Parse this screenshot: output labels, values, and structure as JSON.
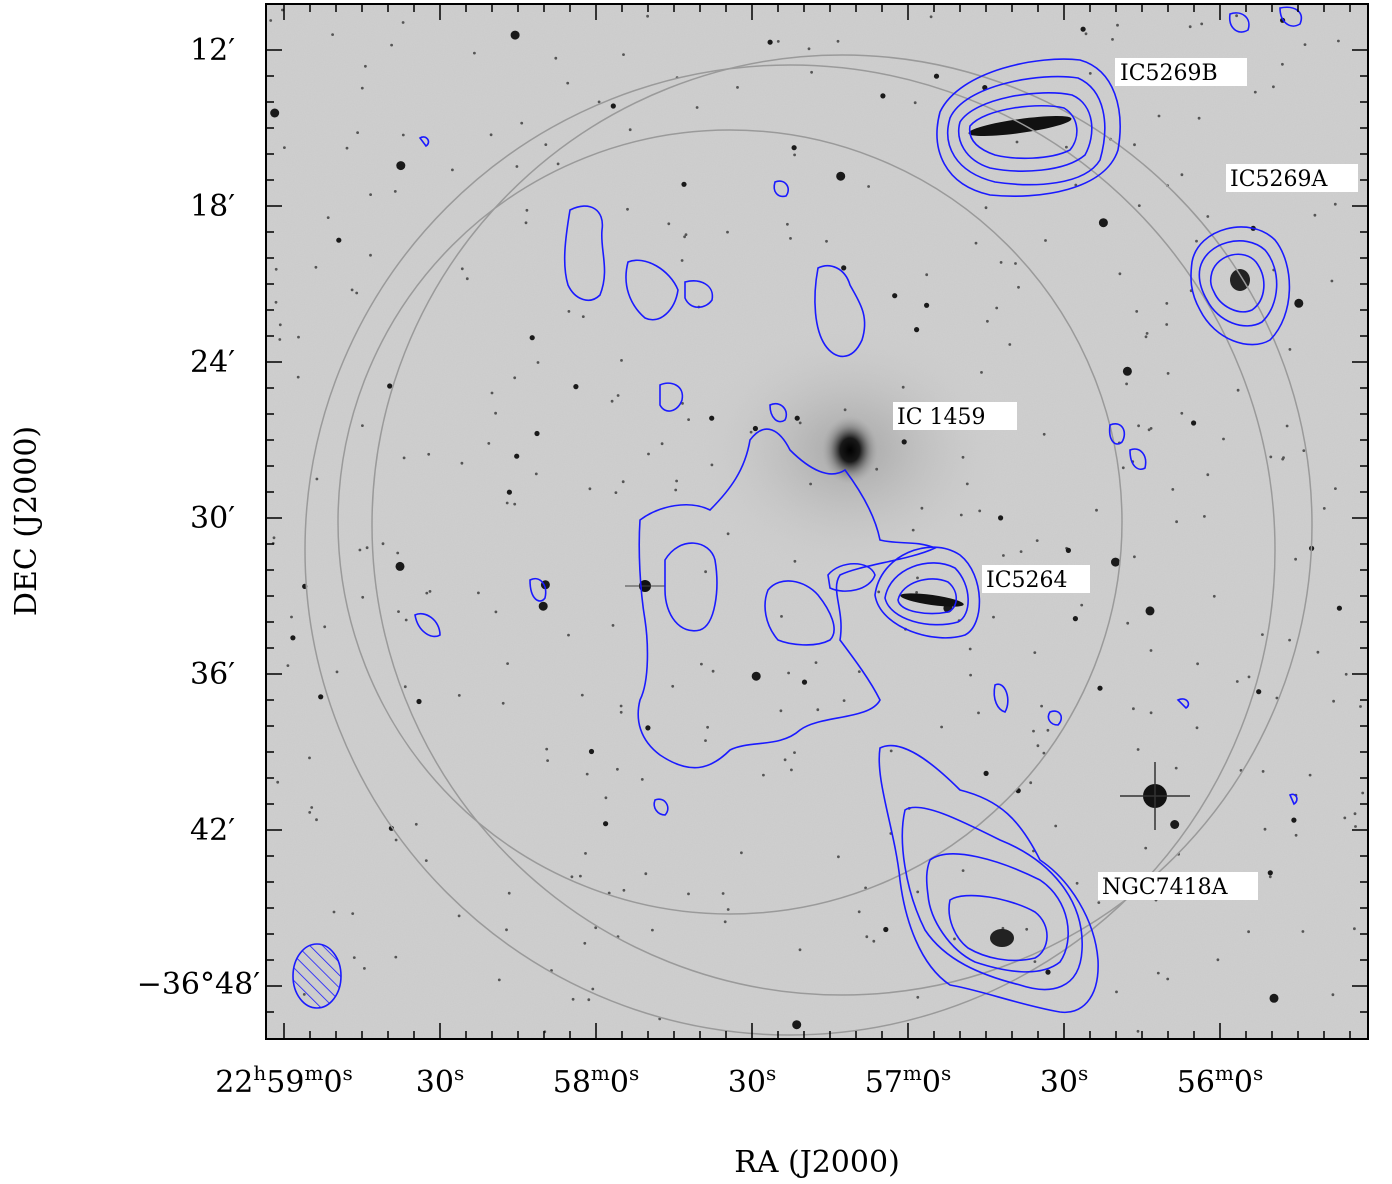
{
  "figure": {
    "x_axis_title": "RA (J2000)",
    "y_axis_title": "DEC (J2000)",
    "dec_ticks": [
      {
        "main": "12",
        "prefix": ""
      },
      {
        "main": "18",
        "prefix": ""
      },
      {
        "main": "24",
        "prefix": ""
      },
      {
        "main": "30",
        "prefix": ""
      },
      {
        "main": "36",
        "prefix": ""
      },
      {
        "main": "42",
        "prefix": ""
      },
      {
        "main": "48",
        "prefix": "−36°"
      }
    ],
    "ra_ticks": [
      {
        "parts": [
          [
            "22",
            "n"
          ],
          [
            "h",
            "s"
          ],
          [
            "59",
            "n"
          ],
          [
            "m",
            "s"
          ],
          [
            "0",
            "n"
          ],
          [
            "s",
            "s"
          ]
        ]
      },
      {
        "parts": [
          [
            "30",
            "n"
          ],
          [
            "s",
            "s"
          ]
        ]
      },
      {
        "parts": [
          [
            "58",
            "n"
          ],
          [
            "m",
            "s"
          ],
          [
            "0",
            "n"
          ],
          [
            "s",
            "s"
          ]
        ]
      },
      {
        "parts": [
          [
            "30",
            "n"
          ],
          [
            "s",
            "s"
          ]
        ]
      },
      {
        "parts": [
          [
            "57",
            "n"
          ],
          [
            "m",
            "s"
          ],
          [
            "0",
            "n"
          ],
          [
            "s",
            "s"
          ]
        ]
      },
      {
        "parts": [
          [
            "30",
            "n"
          ],
          [
            "s",
            "s"
          ]
        ]
      },
      {
        "parts": [
          [
            "56",
            "n"
          ],
          [
            "m",
            "s"
          ],
          [
            "0",
            "n"
          ],
          [
            "s",
            "s"
          ]
        ]
      }
    ],
    "galaxy_labels": [
      "IC5269B",
      "IC5269A",
      "IC 1459",
      "IC5264",
      "NGC7418A"
    ],
    "colors": {
      "contour": "#1a1aff",
      "background": "#cfcfcf",
      "circle": "#9a9a9a",
      "frame": "#000000"
    },
    "prime_symbol": "′"
  }
}
